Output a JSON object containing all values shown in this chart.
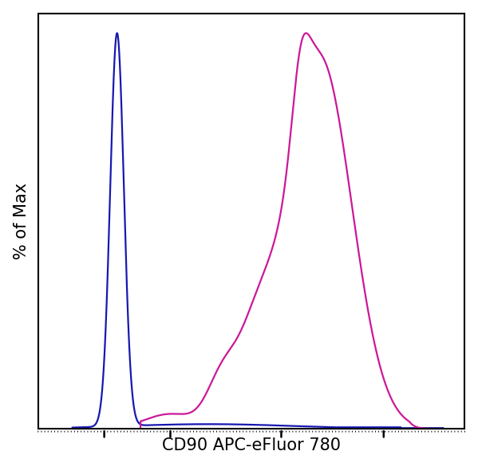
{
  "ylabel": "% of Max",
  "xlabel": "CD90 APC-eFluor 780",
  "background_color": "#ffffff",
  "line_color_blue": "#1818b0",
  "line_color_magenta": "#cc1899",
  "xlim": [
    0,
    1000
  ],
  "ylim": [
    0,
    1.05
  ],
  "linewidth": 1.6,
  "ylabel_fontsize": 15,
  "xlabel_fontsize": 15
}
